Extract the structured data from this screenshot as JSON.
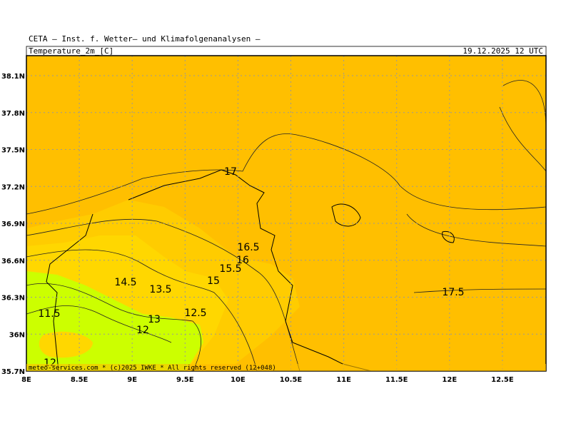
{
  "header": {
    "title": "CETA — Inst. f. Wetter— und Klimafolgenanalysen —",
    "field": "Temperature_2m_[C]",
    "valid": "19.12.2025 12 UTC"
  },
  "footer": "meteo-services.com * (c)2025 IWKE * All rights reserved (12+048)",
  "axes": {
    "lon_ticks": [
      {
        "value": 8,
        "label": "8E"
      },
      {
        "value": 8.5,
        "label": "8.5E"
      },
      {
        "value": 9,
        "label": "9E"
      },
      {
        "value": 9.5,
        "label": "9.5E"
      },
      {
        "value": 10,
        "label": "10E"
      },
      {
        "value": 10.5,
        "label": "10.5E"
      },
      {
        "value": 11,
        "label": "11E"
      },
      {
        "value": 11.5,
        "label": "11.5E"
      },
      {
        "value": 12,
        "label": "12E"
      },
      {
        "value": 12.5,
        "label": "12.5E"
      }
    ],
    "lat_ticks": [
      {
        "value": 35.7,
        "label": "35.7N"
      },
      {
        "value": 36,
        "label": "36N"
      },
      {
        "value": 36.3,
        "label": "36.3N"
      },
      {
        "value": 36.6,
        "label": "36.6N"
      },
      {
        "value": 36.9,
        "label": "36.9N"
      },
      {
        "value": 37.2,
        "label": "37.2N"
      },
      {
        "value": 37.5,
        "label": "37.5N"
      },
      {
        "value": 37.8,
        "label": "37.8N"
      },
      {
        "value": 38.1,
        "label": "38.1N"
      }
    ]
  },
  "contour_labels": [
    "17",
    "16.5",
    "16",
    "15.5",
    "15",
    "14.5",
    "13.5",
    "12.5",
    "13",
    "12",
    "11.5",
    "17.5",
    "12"
  ]
}
